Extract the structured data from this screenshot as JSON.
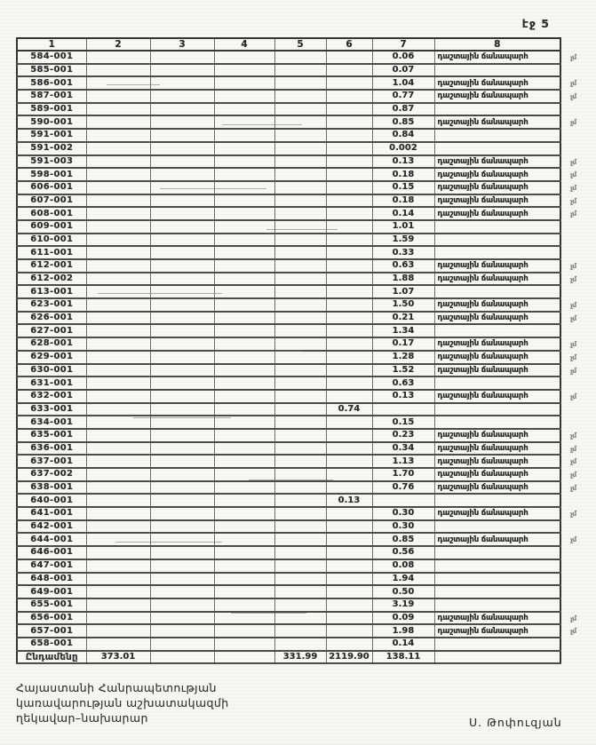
{
  "page": {
    "number_label": "էջ 5"
  },
  "table": {
    "headers": [
      "1",
      "2",
      "3",
      "4",
      "5",
      "6",
      "7",
      "8"
    ],
    "road_label": "դաշտային ճանապարհ",
    "margin_mark": "չմ",
    "rows": [
      {
        "code": "584-001",
        "c7": "0.06",
        "road": true
      },
      {
        "code": "585-001",
        "c7": "0.07",
        "road": false
      },
      {
        "code": "586-001",
        "c7": "1.04",
        "road": true
      },
      {
        "code": "587-001",
        "c7": "0.77",
        "road": true
      },
      {
        "code": "589-001",
        "c7": "0.87",
        "road": false
      },
      {
        "code": "590-001",
        "c7": "0.85",
        "road": true
      },
      {
        "code": "591-001",
        "c7": "0.84",
        "road": false
      },
      {
        "code": "591-002",
        "c7": "0.002",
        "road": false
      },
      {
        "code": "591-003",
        "c7": "0.13",
        "road": true
      },
      {
        "code": "598-001",
        "c7": "0.18",
        "road": true
      },
      {
        "code": "606-001",
        "c7": "0.15",
        "road": true
      },
      {
        "code": "607-001",
        "c7": "0.18",
        "road": true
      },
      {
        "code": "608-001",
        "c7": "0.14",
        "road": true
      },
      {
        "code": "609-001",
        "c7": "1.01",
        "road": false
      },
      {
        "code": "610-001",
        "c7": "1.59",
        "road": false
      },
      {
        "code": "611-001",
        "c7": "0.33",
        "road": false
      },
      {
        "code": "612-001",
        "c7": "0.63",
        "road": true
      },
      {
        "code": "612-002",
        "c7": "1.88",
        "road": true
      },
      {
        "code": "613-001",
        "c7": "1.07",
        "road": false
      },
      {
        "code": "623-001",
        "c7": "1.50",
        "road": true
      },
      {
        "code": "626-001",
        "c7": "0.21",
        "road": true
      },
      {
        "code": "627-001",
        "c7": "1.34",
        "road": false
      },
      {
        "code": "628-001",
        "c7": "0.17",
        "road": true
      },
      {
        "code": "629-001",
        "c7": "1.28",
        "road": true
      },
      {
        "code": "630-001",
        "c7": "1.52",
        "road": true
      },
      {
        "code": "631-001",
        "c7": "0.63",
        "road": false
      },
      {
        "code": "632-001",
        "c7": "0.13",
        "road": true
      },
      {
        "code": "633-001",
        "c6": "0.74",
        "road": false
      },
      {
        "code": "634-001",
        "c7": "0.15",
        "road": false
      },
      {
        "code": "635-001",
        "c7": "0.23",
        "road": true
      },
      {
        "code": "636-001",
        "c7": "0.34",
        "road": true
      },
      {
        "code": "637-001",
        "c7": "1.13",
        "road": true
      },
      {
        "code": "637-002",
        "c7": "1.70",
        "road": true
      },
      {
        "code": "638-001",
        "c7": "0.76",
        "road": true
      },
      {
        "code": "640-001",
        "c6": "0.13",
        "road": false
      },
      {
        "code": "641-001",
        "c7": "0.30",
        "road": true
      },
      {
        "code": "642-001",
        "c7": "0.30",
        "road": false
      },
      {
        "code": "644-001",
        "c7": "0.85",
        "road": true
      },
      {
        "code": "646-001",
        "c7": "0.56",
        "road": false
      },
      {
        "code": "647-001",
        "c7": "0.08",
        "road": false
      },
      {
        "code": "648-001",
        "c7": "1.94",
        "road": false
      },
      {
        "code": "649-001",
        "c7": "0.50",
        "road": false
      },
      {
        "code": "655-001",
        "c7": "3.19",
        "road": false
      },
      {
        "code": "656-001",
        "c7": "0.09",
        "road": true
      },
      {
        "code": "657-001",
        "c7": "1.98",
        "road": true
      },
      {
        "code": "658-001",
        "c7": "0.14",
        "road": false
      }
    ],
    "total": {
      "label": "Ընդամենը",
      "c2": "373.01",
      "c5": "331.99",
      "c6": "2119.90",
      "c7": "138.11"
    }
  },
  "footer": {
    "left_lines": [
      "Հայաստանի Հանրապետության",
      "կառավարության աշխատակազմի",
      "ղեկավար–նախարար"
    ],
    "signature": "Ս. Թոփուզյան"
  }
}
